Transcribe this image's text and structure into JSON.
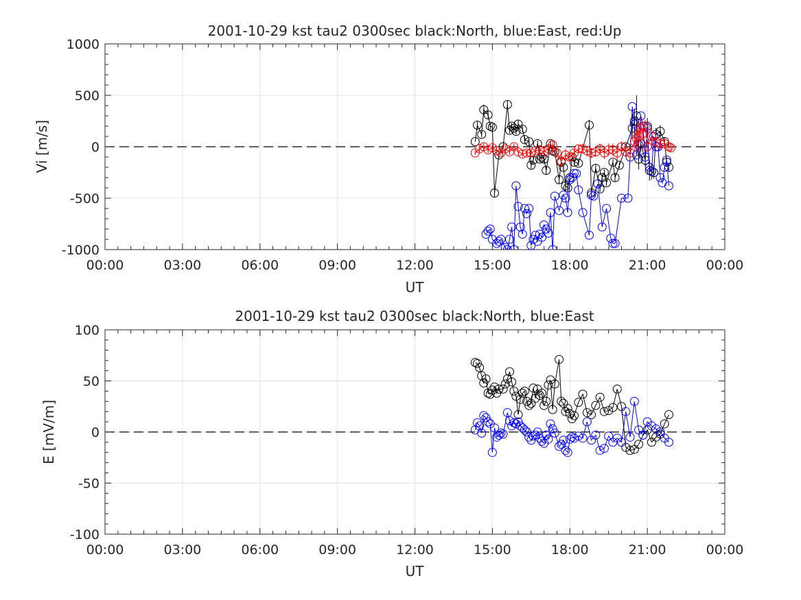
{
  "chart_data": [
    {
      "type": "scatter",
      "title": "2001-10-29 kst tau2 0300sec black:North, blue:East, red:Up",
      "xlabel": "UT",
      "ylabel": "Vi [m/s]",
      "xlim": [
        "00:00",
        "24:00"
      ],
      "ylim": [
        -1000,
        1000
      ],
      "x_tick_labels": [
        "00:00",
        "03:00",
        "06:00",
        "09:00",
        "12:00",
        "15:00",
        "18:00",
        "21:00",
        "00:00"
      ],
      "y_tick_labels": [
        "-1000",
        "-500",
        "0",
        "500",
        "1000"
      ],
      "y_ticks": [
        -1000,
        -500,
        0,
        500,
        1000
      ],
      "grid": true,
      "zero_line": "dashed",
      "series": [
        {
          "color": "#000000",
          "x": [
            "14:20",
            "14:25",
            "14:35",
            "14:40",
            "14:50",
            "14:55",
            "15:00",
            "15:05",
            "15:15",
            "15:25",
            "15:35",
            "15:40",
            "15:45",
            "15:50",
            "15:55",
            "16:00",
            "16:10",
            "16:15",
            "16:25",
            "16:30",
            "16:35",
            "16:45",
            "16:50",
            "16:55",
            "17:00",
            "17:05",
            "17:15",
            "17:20",
            "17:25",
            "17:35",
            "17:40",
            "17:45",
            "17:50",
            "17:55",
            "18:00",
            "18:05",
            "18:10",
            "18:20",
            "18:45",
            "18:50",
            "19:00",
            "19:10",
            "19:15",
            "19:20",
            "19:25",
            "19:40",
            "19:45",
            "19:55",
            "20:10",
            "20:25",
            "20:30",
            "20:35",
            "20:40",
            "20:45",
            "20:55",
            "21:00",
            "21:05",
            "21:10",
            "21:15",
            "21:20",
            "21:30",
            "21:40",
            "21:45",
            "21:50"
          ],
          "y": [
            50,
            210,
            120,
            360,
            310,
            200,
            190,
            -450,
            -80,
            0,
            410,
            160,
            200,
            180,
            150,
            220,
            170,
            70,
            50,
            -180,
            -130,
            30,
            -120,
            -100,
            -120,
            -230,
            30,
            -40,
            -50,
            -320,
            -150,
            -200,
            -380,
            -400,
            -300,
            -100,
            -150,
            -160,
            210,
            -450,
            -210,
            -410,
            -300,
            -250,
            -350,
            -150,
            -300,
            -180,
            0,
            180,
            250,
            300,
            -120,
            30,
            -130,
            200,
            -230,
            -240,
            -250,
            120,
            150,
            50,
            -150,
            -200
          ],
          "err": [
            0,
            40,
            30,
            50,
            40,
            30,
            30,
            40,
            30,
            20,
            40,
            30,
            30,
            30,
            30,
            40,
            30,
            30,
            30,
            40,
            40,
            30,
            30,
            30,
            40,
            40,
            30,
            30,
            30,
            40,
            40,
            30,
            60,
            40,
            40,
            40,
            30,
            30,
            50,
            40,
            40,
            30,
            30,
            30,
            30,
            30,
            40,
            30,
            30,
            100,
            120,
            200,
            100,
            80,
            60,
            80,
            100,
            80,
            60,
            60,
            60,
            40,
            40,
            40
          ]
        },
        {
          "color": "#0000ff",
          "x": [
            "14:45",
            "14:50",
            "14:55",
            "15:00",
            "15:10",
            "15:15",
            "15:20",
            "15:30",
            "15:35",
            "15:40",
            "15:45",
            "15:50",
            "15:55",
            "16:00",
            "16:05",
            "16:10",
            "16:15",
            "16:20",
            "16:25",
            "16:30",
            "16:35",
            "16:40",
            "16:45",
            "16:50",
            "16:55",
            "17:00",
            "17:05",
            "17:10",
            "17:15",
            "17:20",
            "17:25",
            "17:35",
            "17:45",
            "17:50",
            "17:55",
            "18:00",
            "18:05",
            "18:10",
            "18:15",
            "18:20",
            "18:30",
            "18:45",
            "18:50",
            "18:55",
            "19:05",
            "19:15",
            "19:25",
            "19:35",
            "19:40",
            "19:45",
            "20:00",
            "20:15",
            "20:20",
            "20:25",
            "20:30",
            "20:35",
            "20:40",
            "20:45",
            "20:50",
            "20:55",
            "21:00",
            "21:05",
            "21:10",
            "21:15",
            "21:20",
            "21:25",
            "21:30",
            "21:35",
            "21:40",
            "21:45",
            "21:50"
          ],
          "y": [
            -850,
            -820,
            -800,
            -900,
            -940,
            -920,
            -900,
            -980,
            -1000,
            -900,
            -780,
            -1000,
            -380,
            -580,
            -780,
            -850,
            -600,
            -650,
            -600,
            -960,
            -900,
            -860,
            -920,
            -850,
            -880,
            -760,
            -800,
            -840,
            -640,
            -1000,
            -480,
            -620,
            -470,
            -500,
            -640,
            -320,
            -300,
            -260,
            -260,
            -420,
            -640,
            -860,
            -470,
            -480,
            -360,
            -780,
            -600,
            -890,
            -940,
            -940,
            -500,
            -500,
            -100,
            390,
            220,
            -80,
            20,
            300,
            200,
            -100,
            180,
            -200,
            -240,
            100,
            0,
            0,
            -300,
            -350,
            -200,
            -130,
            -380
          ],
          "err": [
            0,
            0,
            0,
            0,
            0,
            0,
            0,
            0,
            0,
            0,
            0,
            0,
            0,
            0,
            0,
            0,
            0,
            0,
            0,
            0,
            0,
            0,
            0,
            0,
            0,
            0,
            0,
            0,
            0,
            0,
            0,
            0,
            0,
            0,
            0,
            0,
            0,
            0,
            0,
            0,
            0,
            0,
            0,
            0,
            0,
            0,
            0,
            0,
            0,
            0,
            0,
            0,
            0,
            0,
            0,
            0,
            0,
            0,
            0,
            0,
            0,
            0,
            0,
            0,
            0,
            0,
            0,
            0,
            0,
            0,
            0
          ]
        },
        {
          "color": "#ff0000",
          "x": [
            "14:20",
            "14:30",
            "14:40",
            "14:50",
            "15:00",
            "15:10",
            "15:20",
            "15:30",
            "15:40",
            "15:50",
            "16:00",
            "16:10",
            "16:20",
            "16:30",
            "16:40",
            "16:50",
            "17:00",
            "17:10",
            "17:20",
            "17:30",
            "17:40",
            "17:50",
            "18:00",
            "18:10",
            "18:20",
            "18:30",
            "18:40",
            "18:50",
            "19:00",
            "19:10",
            "19:20",
            "19:30",
            "19:40",
            "19:50",
            "20:00",
            "20:10",
            "20:20",
            "20:30",
            "20:35",
            "20:40",
            "20:45",
            "20:50",
            "20:55",
            "21:00",
            "21:10",
            "21:20",
            "21:30",
            "21:40",
            "21:50",
            "21:55"
          ],
          "y": [
            -60,
            -20,
            0,
            -30,
            -10,
            -40,
            -60,
            -20,
            -50,
            0,
            -50,
            -70,
            -60,
            -60,
            -40,
            -30,
            -50,
            -20,
            20,
            -60,
            -140,
            -80,
            -100,
            -60,
            -20,
            -20,
            -40,
            -60,
            -50,
            -20,
            -60,
            -30,
            -30,
            -60,
            0,
            -50,
            -60,
            50,
            80,
            100,
            180,
            130,
            200,
            0,
            100,
            50,
            30,
            30,
            0,
            -10
          ],
          "err": [
            20,
            30,
            40,
            30,
            30,
            30,
            30,
            30,
            30,
            30,
            30,
            30,
            30,
            30,
            30,
            40,
            40,
            40,
            40,
            40,
            60,
            60,
            40,
            40,
            40,
            40,
            50,
            50,
            50,
            50,
            60,
            60,
            60,
            80,
            50,
            50,
            80,
            100,
            120,
            150,
            100,
            80,
            60,
            60,
            80,
            60,
            60,
            50,
            50,
            40
          ]
        }
      ]
    },
    {
      "type": "scatter",
      "title": "2001-10-29 kst tau2 0300sec black:North, blue:East",
      "xlabel": "UT",
      "ylabel": "E [mV/m]",
      "xlim": [
        "00:00",
        "24:00"
      ],
      "ylim": [
        -100,
        100
      ],
      "x_tick_labels": [
        "00:00",
        "03:00",
        "06:00",
        "09:00",
        "12:00",
        "15:00",
        "18:00",
        "21:00",
        "00:00"
      ],
      "y_tick_labels": [
        "-100",
        "-50",
        "0",
        "50",
        "100"
      ],
      "y_ticks": [
        -100,
        -50,
        0,
        50,
        100
      ],
      "grid": true,
      "zero_line": "dashed",
      "series": [
        {
          "color": "#000000",
          "x": [
            "14:20",
            "14:25",
            "14:30",
            "14:35",
            "14:40",
            "14:45",
            "14:50",
            "14:55",
            "15:00",
            "15:05",
            "15:10",
            "15:15",
            "15:25",
            "15:30",
            "15:35",
            "15:40",
            "15:45",
            "15:50",
            "15:55",
            "16:00",
            "16:05",
            "16:10",
            "16:15",
            "16:20",
            "16:25",
            "16:30",
            "16:35",
            "16:40",
            "16:45",
            "16:50",
            "16:55",
            "17:00",
            "17:05",
            "17:10",
            "17:15",
            "17:20",
            "17:25",
            "17:35",
            "17:40",
            "17:45",
            "17:50",
            "17:55",
            "18:00",
            "18:05",
            "18:10",
            "18:20",
            "18:30",
            "18:40",
            "18:50",
            "19:00",
            "19:10",
            "19:20",
            "19:30",
            "19:40",
            "19:50",
            "20:00",
            "20:10",
            "20:20",
            "20:30",
            "20:40",
            "20:50",
            "21:00",
            "21:10",
            "21:20",
            "21:30",
            "21:40",
            "21:50"
          ],
          "y": [
            68,
            67,
            63,
            55,
            48,
            52,
            38,
            37,
            41,
            44,
            38,
            42,
            42,
            47,
            52,
            59,
            49,
            40,
            35,
            17,
            32,
            38,
            40,
            30,
            26,
            28,
            43,
            33,
            42,
            36,
            38,
            26,
            30,
            46,
            51,
            22,
            47,
            71,
            30,
            28,
            20,
            23,
            18,
            13,
            16,
            29,
            37,
            19,
            17,
            26,
            34,
            20,
            21,
            24,
            42,
            25,
            -15,
            -18,
            -17,
            -12,
            -3,
            2,
            -10,
            -5,
            -2,
            8,
            17
          ]
        },
        {
          "color": "#0000ff",
          "x": [
            "14:20",
            "14:25",
            "14:30",
            "14:35",
            "14:40",
            "14:45",
            "14:50",
            "14:55",
            "15:00",
            "15:05",
            "15:10",
            "15:15",
            "15:20",
            "15:25",
            "15:35",
            "15:40",
            "15:45",
            "15:50",
            "15:55",
            "16:00",
            "16:05",
            "16:10",
            "16:15",
            "16:20",
            "16:25",
            "16:30",
            "16:35",
            "16:40",
            "16:45",
            "16:50",
            "16:55",
            "17:00",
            "17:05",
            "17:10",
            "17:15",
            "17:20",
            "17:25",
            "17:35",
            "17:40",
            "17:45",
            "17:50",
            "17:55",
            "18:00",
            "18:05",
            "18:10",
            "18:20",
            "18:30",
            "18:40",
            "18:50",
            "19:00",
            "19:10",
            "19:20",
            "19:30",
            "19:40",
            "19:50",
            "20:00",
            "20:10",
            "20:20",
            "20:30",
            "20:40",
            "20:50",
            "21:00",
            "21:10",
            "21:20",
            "21:30",
            "21:40",
            "21:50"
          ],
          "y": [
            2,
            9,
            6,
            -1,
            16,
            14,
            10,
            8,
            -20,
            4,
            -5,
            -3,
            -1,
            -2,
            19,
            11,
            6,
            9,
            8,
            10,
            6,
            4,
            2,
            0,
            -5,
            -8,
            -4,
            -3,
            0,
            -6,
            -9,
            -11,
            -3,
            -7,
            8,
            3,
            -1,
            -14,
            -12,
            -8,
            -18,
            -20,
            -7,
            -5,
            -6,
            -4,
            -6,
            10,
            -8,
            -3,
            -18,
            -16,
            -4,
            -10,
            -6,
            -10,
            20,
            -5,
            30,
            2,
            -3,
            10,
            6,
            3,
            0,
            -6,
            -10
          ]
        }
      ]
    }
  ]
}
